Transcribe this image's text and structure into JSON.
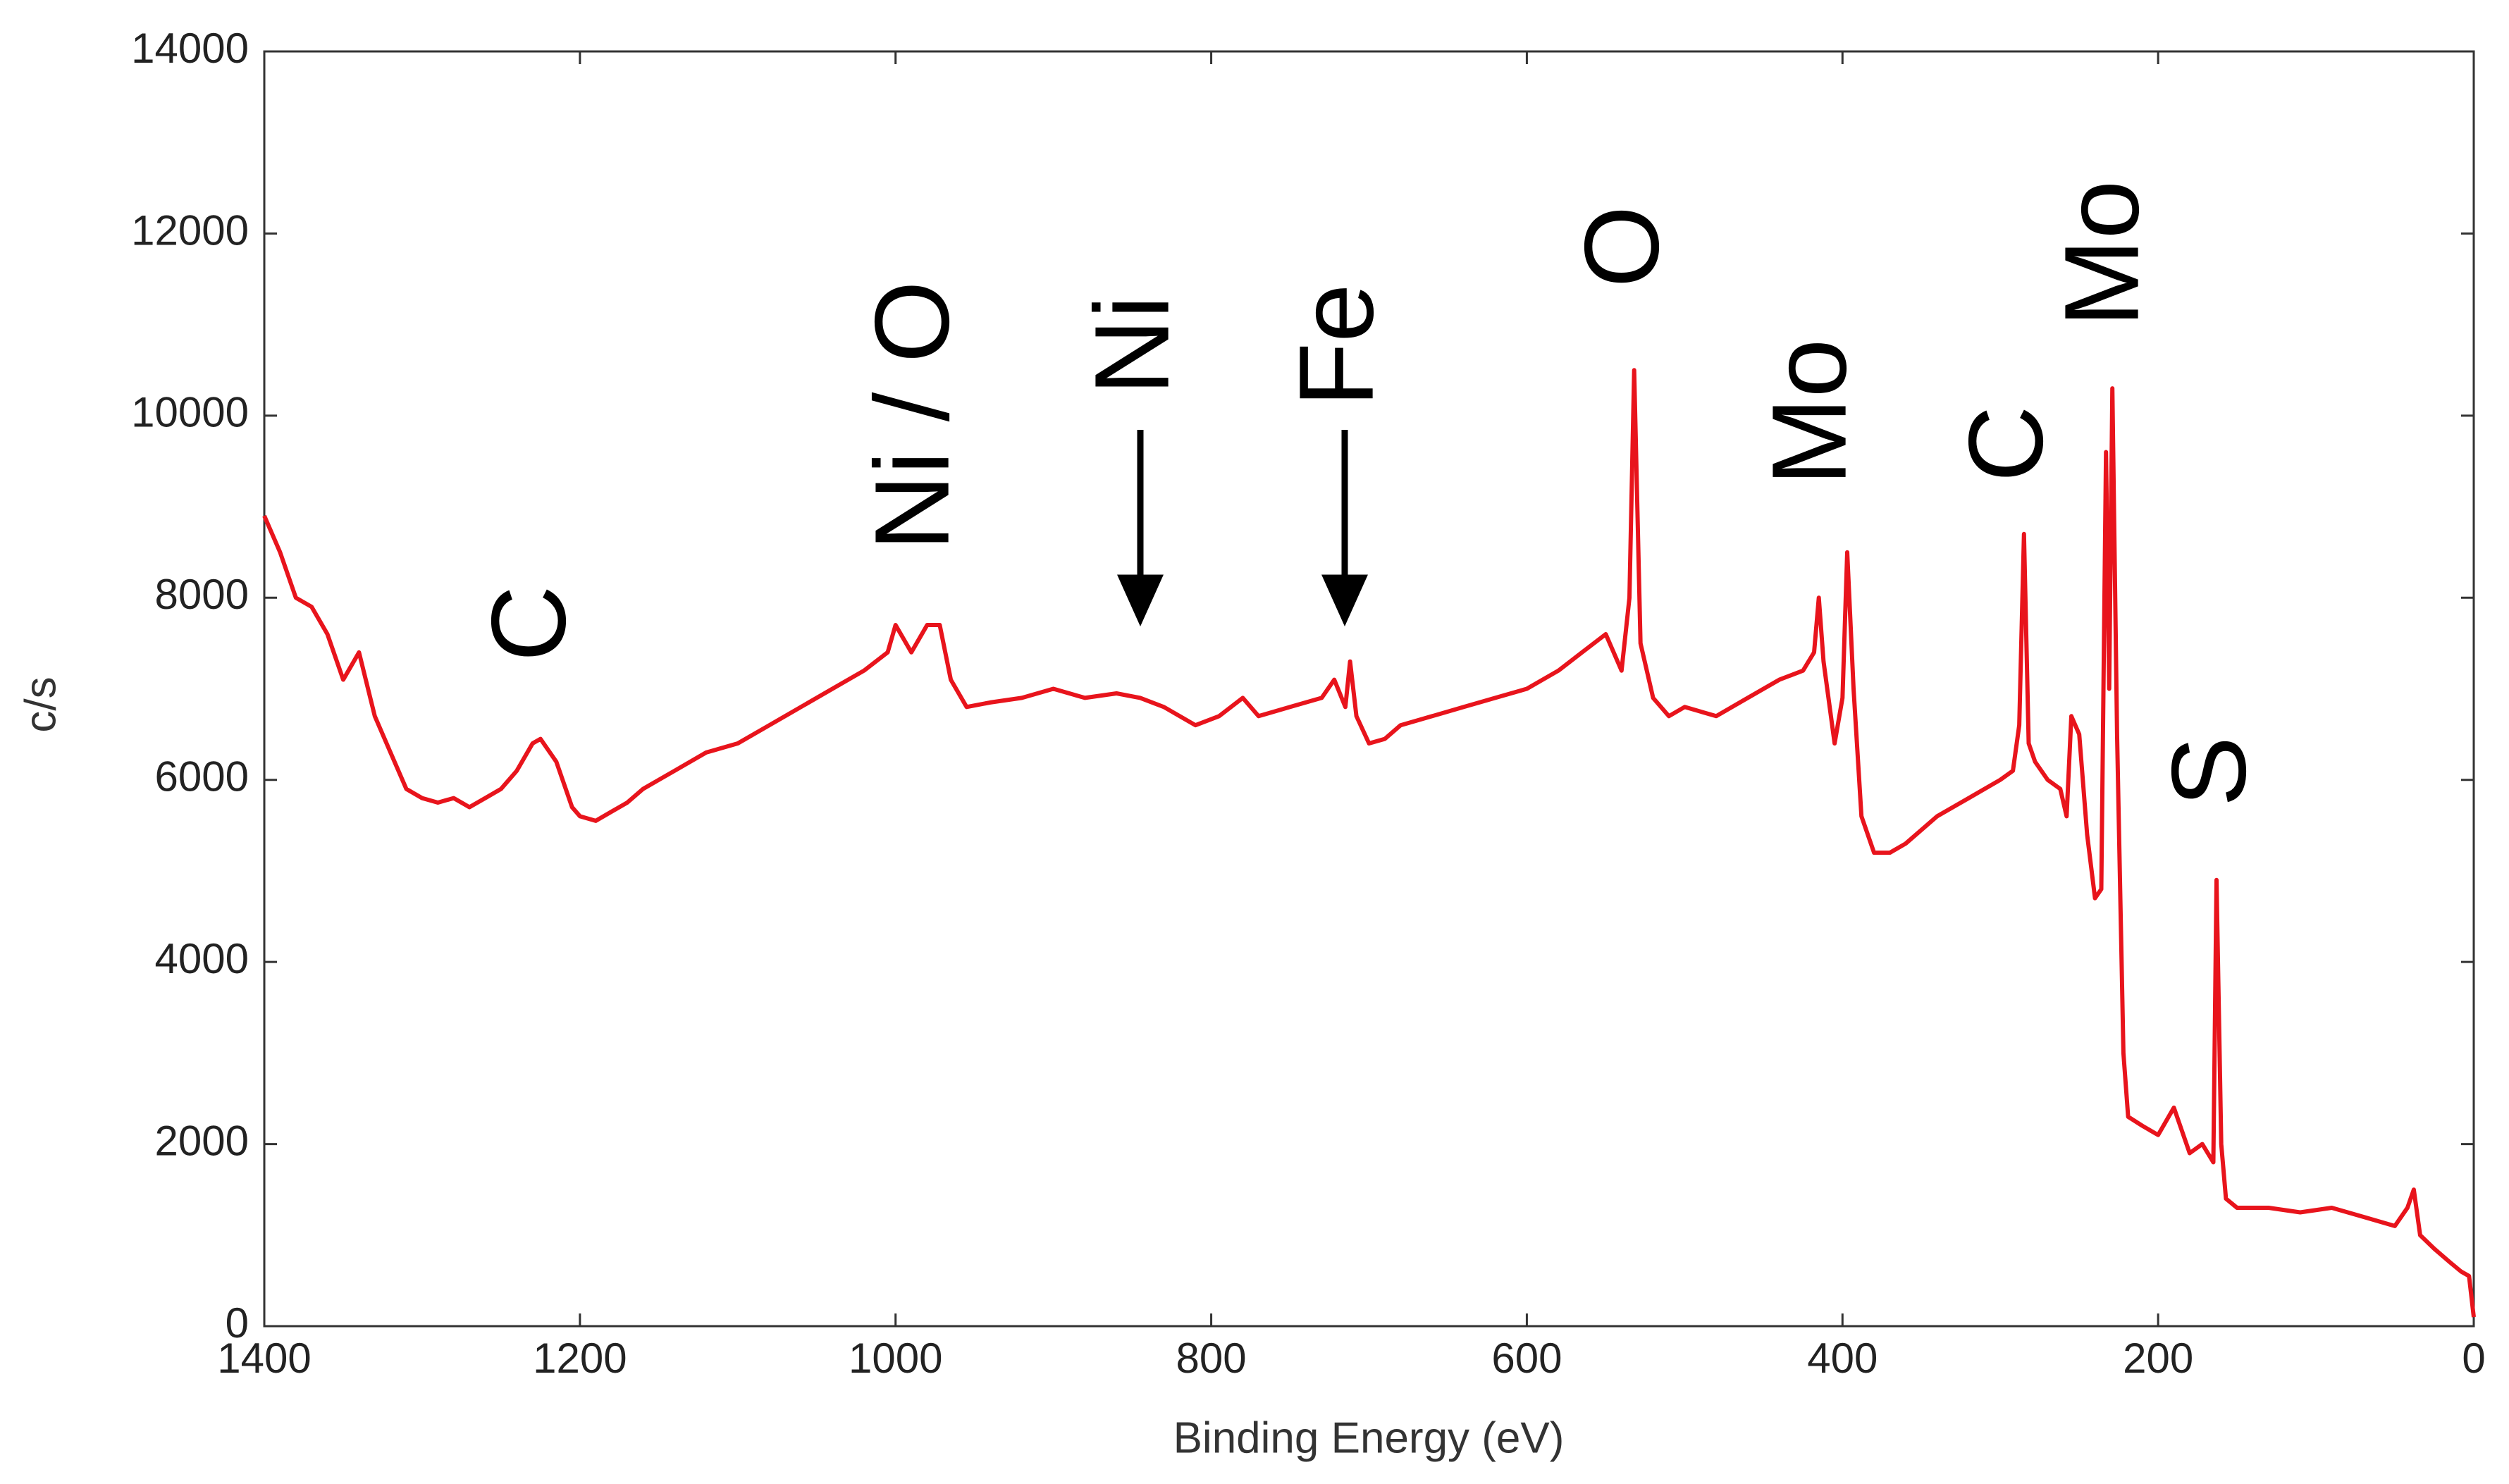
{
  "chart_data": {
    "type": "line",
    "xlabel": "Binding Energy (eV)",
    "ylabel": "c/s",
    "xlim": [
      1400,
      0
    ],
    "xticks": [
      1400,
      1200,
      1000,
      800,
      600,
      400,
      200,
      0
    ],
    "ylim": [
      0,
      14000
    ],
    "yticks": [
      0,
      2000,
      4000,
      6000,
      8000,
      10000,
      12000,
      14000
    ],
    "x": [
      1400,
      1390,
      1380,
      1370,
      1360,
      1350,
      1340,
      1330,
      1320,
      1310,
      1300,
      1290,
      1280,
      1270,
      1260,
      1250,
      1240,
      1230,
      1225,
      1215,
      1205,
      1200,
      1190,
      1180,
      1170,
      1160,
      1150,
      1140,
      1120,
      1100,
      1080,
      1060,
      1040,
      1020,
      1005,
      1000,
      990,
      980,
      972,
      965,
      955,
      940,
      920,
      900,
      880,
      860,
      845,
      830,
      810,
      795,
      780,
      770,
      750,
      730,
      722,
      715,
      712,
      708,
      700,
      690,
      680,
      660,
      640,
      620,
      600,
      580,
      565,
      550,
      545,
      540,
      535,
      532,
      528,
      520,
      510,
      500,
      480,
      460,
      440,
      425,
      418,
      415,
      412,
      405,
      400,
      397,
      393,
      388,
      380,
      370,
      360,
      340,
      320,
      300,
      292,
      288,
      285,
      282,
      278,
      270,
      262,
      258,
      255,
      250,
      245,
      240,
      236,
      233,
      231,
      229,
      226,
      222,
      219,
      210,
      200,
      190,
      180,
      172,
      165,
      163,
      160,
      157,
      150,
      130,
      110,
      90,
      70,
      50,
      42,
      38,
      34,
      25,
      15,
      8,
      3,
      0
    ],
    "series": [
      {
        "color": "#e8141c",
        "values": [
          8900,
          8500,
          8000,
          7900,
          7600,
          7100,
          7400,
          6700,
          6300,
          5900,
          5800,
          5750,
          5800,
          5700,
          5800,
          5900,
          6100,
          6400,
          6450,
          6200,
          5700,
          5600,
          5550,
          5650,
          5750,
          5900,
          6000,
          6100,
          6300,
          6400,
          6600,
          6800,
          7000,
          7200,
          7400,
          7700,
          7400,
          7700,
          7700,
          7100,
          6800,
          6850,
          6900,
          7000,
          6900,
          6950,
          6900,
          6800,
          6600,
          6700,
          6900,
          6700,
          6800,
          6900,
          7100,
          6800,
          7300,
          6700,
          6400,
          6450,
          6600,
          6700,
          6800,
          6900,
          7000,
          7200,
          7400,
          7600,
          7400,
          7200,
          8000,
          10500,
          7500,
          6900,
          6700,
          6800,
          6700,
          6900,
          7100,
          7200,
          7400,
          8000,
          7300,
          6400,
          6900,
          8500,
          7000,
          5600,
          5200,
          5200,
          5300,
          5600,
          5800,
          6000,
          6100,
          6600,
          8700,
          6400,
          6200,
          6000,
          5900,
          5600,
          6700,
          6500,
          5400,
          4700,
          4800,
          9600,
          7000,
          10300,
          6500,
          3000,
          2300,
          2200,
          2100,
          2400,
          1900,
          2000,
          1800,
          4900,
          2000,
          1400,
          1300,
          1300,
          1250,
          1300,
          1200,
          1100,
          1300,
          1500,
          1000,
          850,
          700,
          600,
          550,
          100
        ]
      }
    ],
    "annotations": [
      {
        "text": "C"
      },
      {
        "text": "Ni / O"
      },
      {
        "text": "Ni"
      },
      {
        "text": "Fe"
      },
      {
        "text": "O"
      },
      {
        "text": "Mo"
      },
      {
        "text": "C"
      },
      {
        "text": "Mo"
      },
      {
        "text": "S"
      }
    ]
  }
}
